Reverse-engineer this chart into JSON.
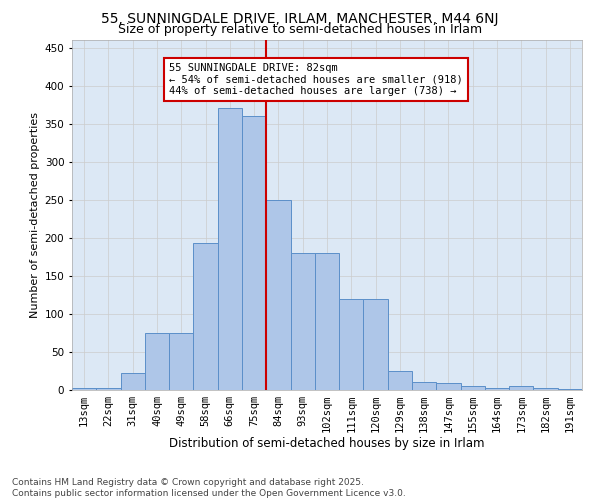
{
  "title1": "55, SUNNINGDALE DRIVE, IRLAM, MANCHESTER, M44 6NJ",
  "title2": "Size of property relative to semi-detached houses in Irlam",
  "xlabel": "Distribution of semi-detached houses by size in Irlam",
  "ylabel": "Number of semi-detached properties",
  "bin_labels": [
    "13sqm",
    "22sqm",
    "31sqm",
    "40sqm",
    "49sqm",
    "58sqm",
    "66sqm",
    "75sqm",
    "84sqm",
    "93sqm",
    "102sqm",
    "111sqm",
    "120sqm",
    "129sqm",
    "138sqm",
    "147sqm",
    "155sqm",
    "164sqm",
    "173sqm",
    "182sqm",
    "191sqm"
  ],
  "bar_values": [
    2,
    3,
    23,
    75,
    75,
    193,
    370,
    360,
    250,
    180,
    180,
    120,
    120,
    25,
    11,
    9,
    5,
    3,
    5,
    2,
    1
  ],
  "bar_color": "#aec6e8",
  "bar_edge_color": "#5b8fc9",
  "vline_x_idx": 8,
  "vline_color": "#cc0000",
  "annotation_text": "55 SUNNINGDALE DRIVE: 82sqm\n← 54% of semi-detached houses are smaller (918)\n44% of semi-detached houses are larger (738) →",
  "annotation_box_color": "#ffffff",
  "annotation_box_edge": "#cc0000",
  "ylim": [
    0,
    460
  ],
  "yticks": [
    0,
    50,
    100,
    150,
    200,
    250,
    300,
    350,
    400,
    450
  ],
  "grid_color": "#cccccc",
  "background_color": "#dce8f5",
  "footer": "Contains HM Land Registry data © Crown copyright and database right 2025.\nContains public sector information licensed under the Open Government Licence v3.0.",
  "title1_fontsize": 10,
  "title2_fontsize": 9,
  "xlabel_fontsize": 8.5,
  "ylabel_fontsize": 8,
  "tick_fontsize": 7.5,
  "annotation_fontsize": 7.5,
  "footer_fontsize": 6.5
}
